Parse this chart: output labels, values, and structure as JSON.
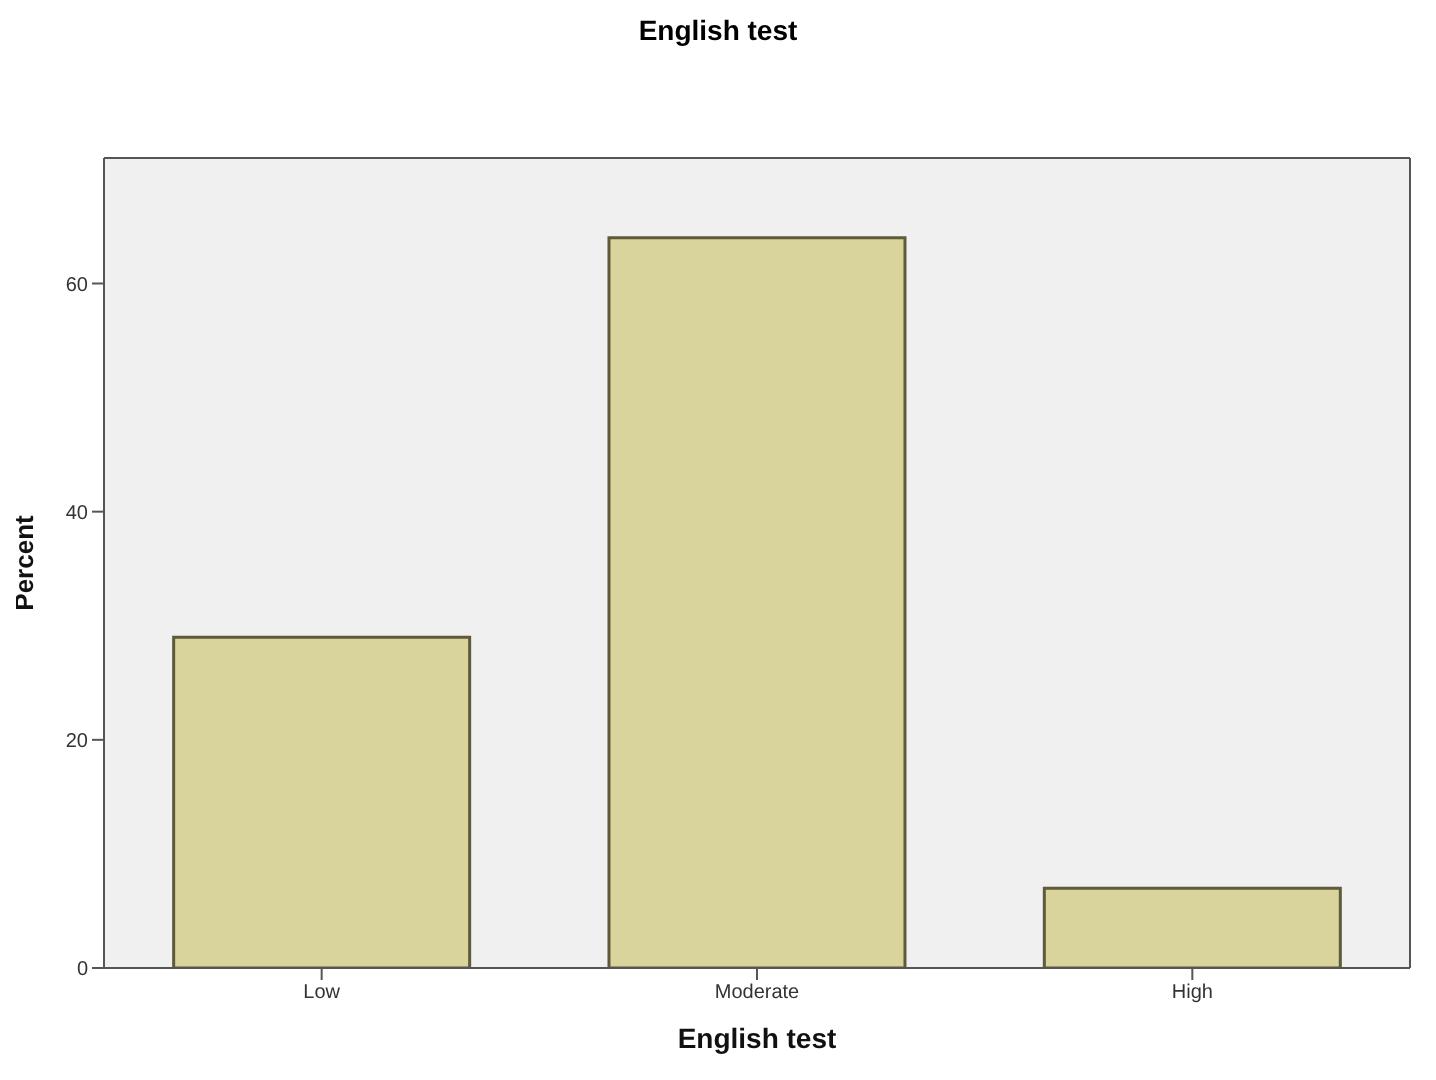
{
  "chart_data": {
    "type": "bar",
    "title": "English test",
    "xlabel": "English test",
    "ylabel": "Percent",
    "categories": [
      "Low",
      "Moderate",
      "High"
    ],
    "values": [
      29,
      64,
      7
    ],
    "color": "#d8d49c",
    "ylim": [
      0,
      71
    ],
    "yticks": [
      0,
      20,
      40,
      60
    ],
    "grid": false
  }
}
